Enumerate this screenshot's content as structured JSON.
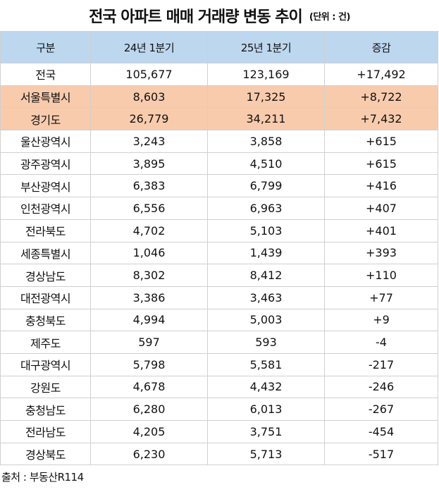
{
  "title": {
    "main": "전국 아파트 매매 거래량 변동 추이",
    "unit": "(단위 : 건)"
  },
  "table": {
    "headers": [
      "구분",
      "24년 1분기",
      "25년 1분기",
      "증감"
    ],
    "rows": [
      {
        "region": "전국",
        "q1_2024": "105,677",
        "q1_2025": "123,169",
        "change": "+17,492",
        "highlight": false
      },
      {
        "region": "서울특별시",
        "q1_2024": "8,603",
        "q1_2025": "17,325",
        "change": "+8,722",
        "highlight": true
      },
      {
        "region": "경기도",
        "q1_2024": "26,779",
        "q1_2025": "34,211",
        "change": "+7,432",
        "highlight": true
      },
      {
        "region": "울산광역시",
        "q1_2024": "3,243",
        "q1_2025": "3,858",
        "change": "+615",
        "highlight": false
      },
      {
        "region": "광주광역시",
        "q1_2024": "3,895",
        "q1_2025": "4,510",
        "change": "+615",
        "highlight": false
      },
      {
        "region": "부산광역시",
        "q1_2024": "6,383",
        "q1_2025": "6,799",
        "change": "+416",
        "highlight": false
      },
      {
        "region": "인천광역시",
        "q1_2024": "6,556",
        "q1_2025": "6,963",
        "change": "+407",
        "highlight": false
      },
      {
        "region": "전라북도",
        "q1_2024": "4,702",
        "q1_2025": "5,103",
        "change": "+401",
        "highlight": false
      },
      {
        "region": "세종특별시",
        "q1_2024": "1,046",
        "q1_2025": "1,439",
        "change": "+393",
        "highlight": false
      },
      {
        "region": "경상남도",
        "q1_2024": "8,302",
        "q1_2025": "8,412",
        "change": "+110",
        "highlight": false
      },
      {
        "region": "대전광역시",
        "q1_2024": "3,386",
        "q1_2025": "3,463",
        "change": "+77",
        "highlight": false
      },
      {
        "region": "충청북도",
        "q1_2024": "4,994",
        "q1_2025": "5,003",
        "change": "+9",
        "highlight": false
      },
      {
        "region": "제주도",
        "q1_2024": "597",
        "q1_2025": "593",
        "change": "-4",
        "highlight": false
      },
      {
        "region": "대구광역시",
        "q1_2024": "5,798",
        "q1_2025": "5,581",
        "change": "-217",
        "highlight": false
      },
      {
        "region": "강원도",
        "q1_2024": "4,678",
        "q1_2025": "4,432",
        "change": "-246",
        "highlight": false
      },
      {
        "region": "충청남도",
        "q1_2024": "6,280",
        "q1_2025": "6,013",
        "change": "-267",
        "highlight": false
      },
      {
        "region": "전라남도",
        "q1_2024": "4,205",
        "q1_2025": "3,751",
        "change": "-454",
        "highlight": false
      },
      {
        "region": "경상북도",
        "q1_2024": "6,230",
        "q1_2025": "5,713",
        "change": "-517",
        "highlight": false
      }
    ]
  },
  "source": "출처 : 부동산R114",
  "colors": {
    "header_bg": "#bdd7ee",
    "highlight_bg": "#f8cbad",
    "grid": "#d0d0d0"
  }
}
